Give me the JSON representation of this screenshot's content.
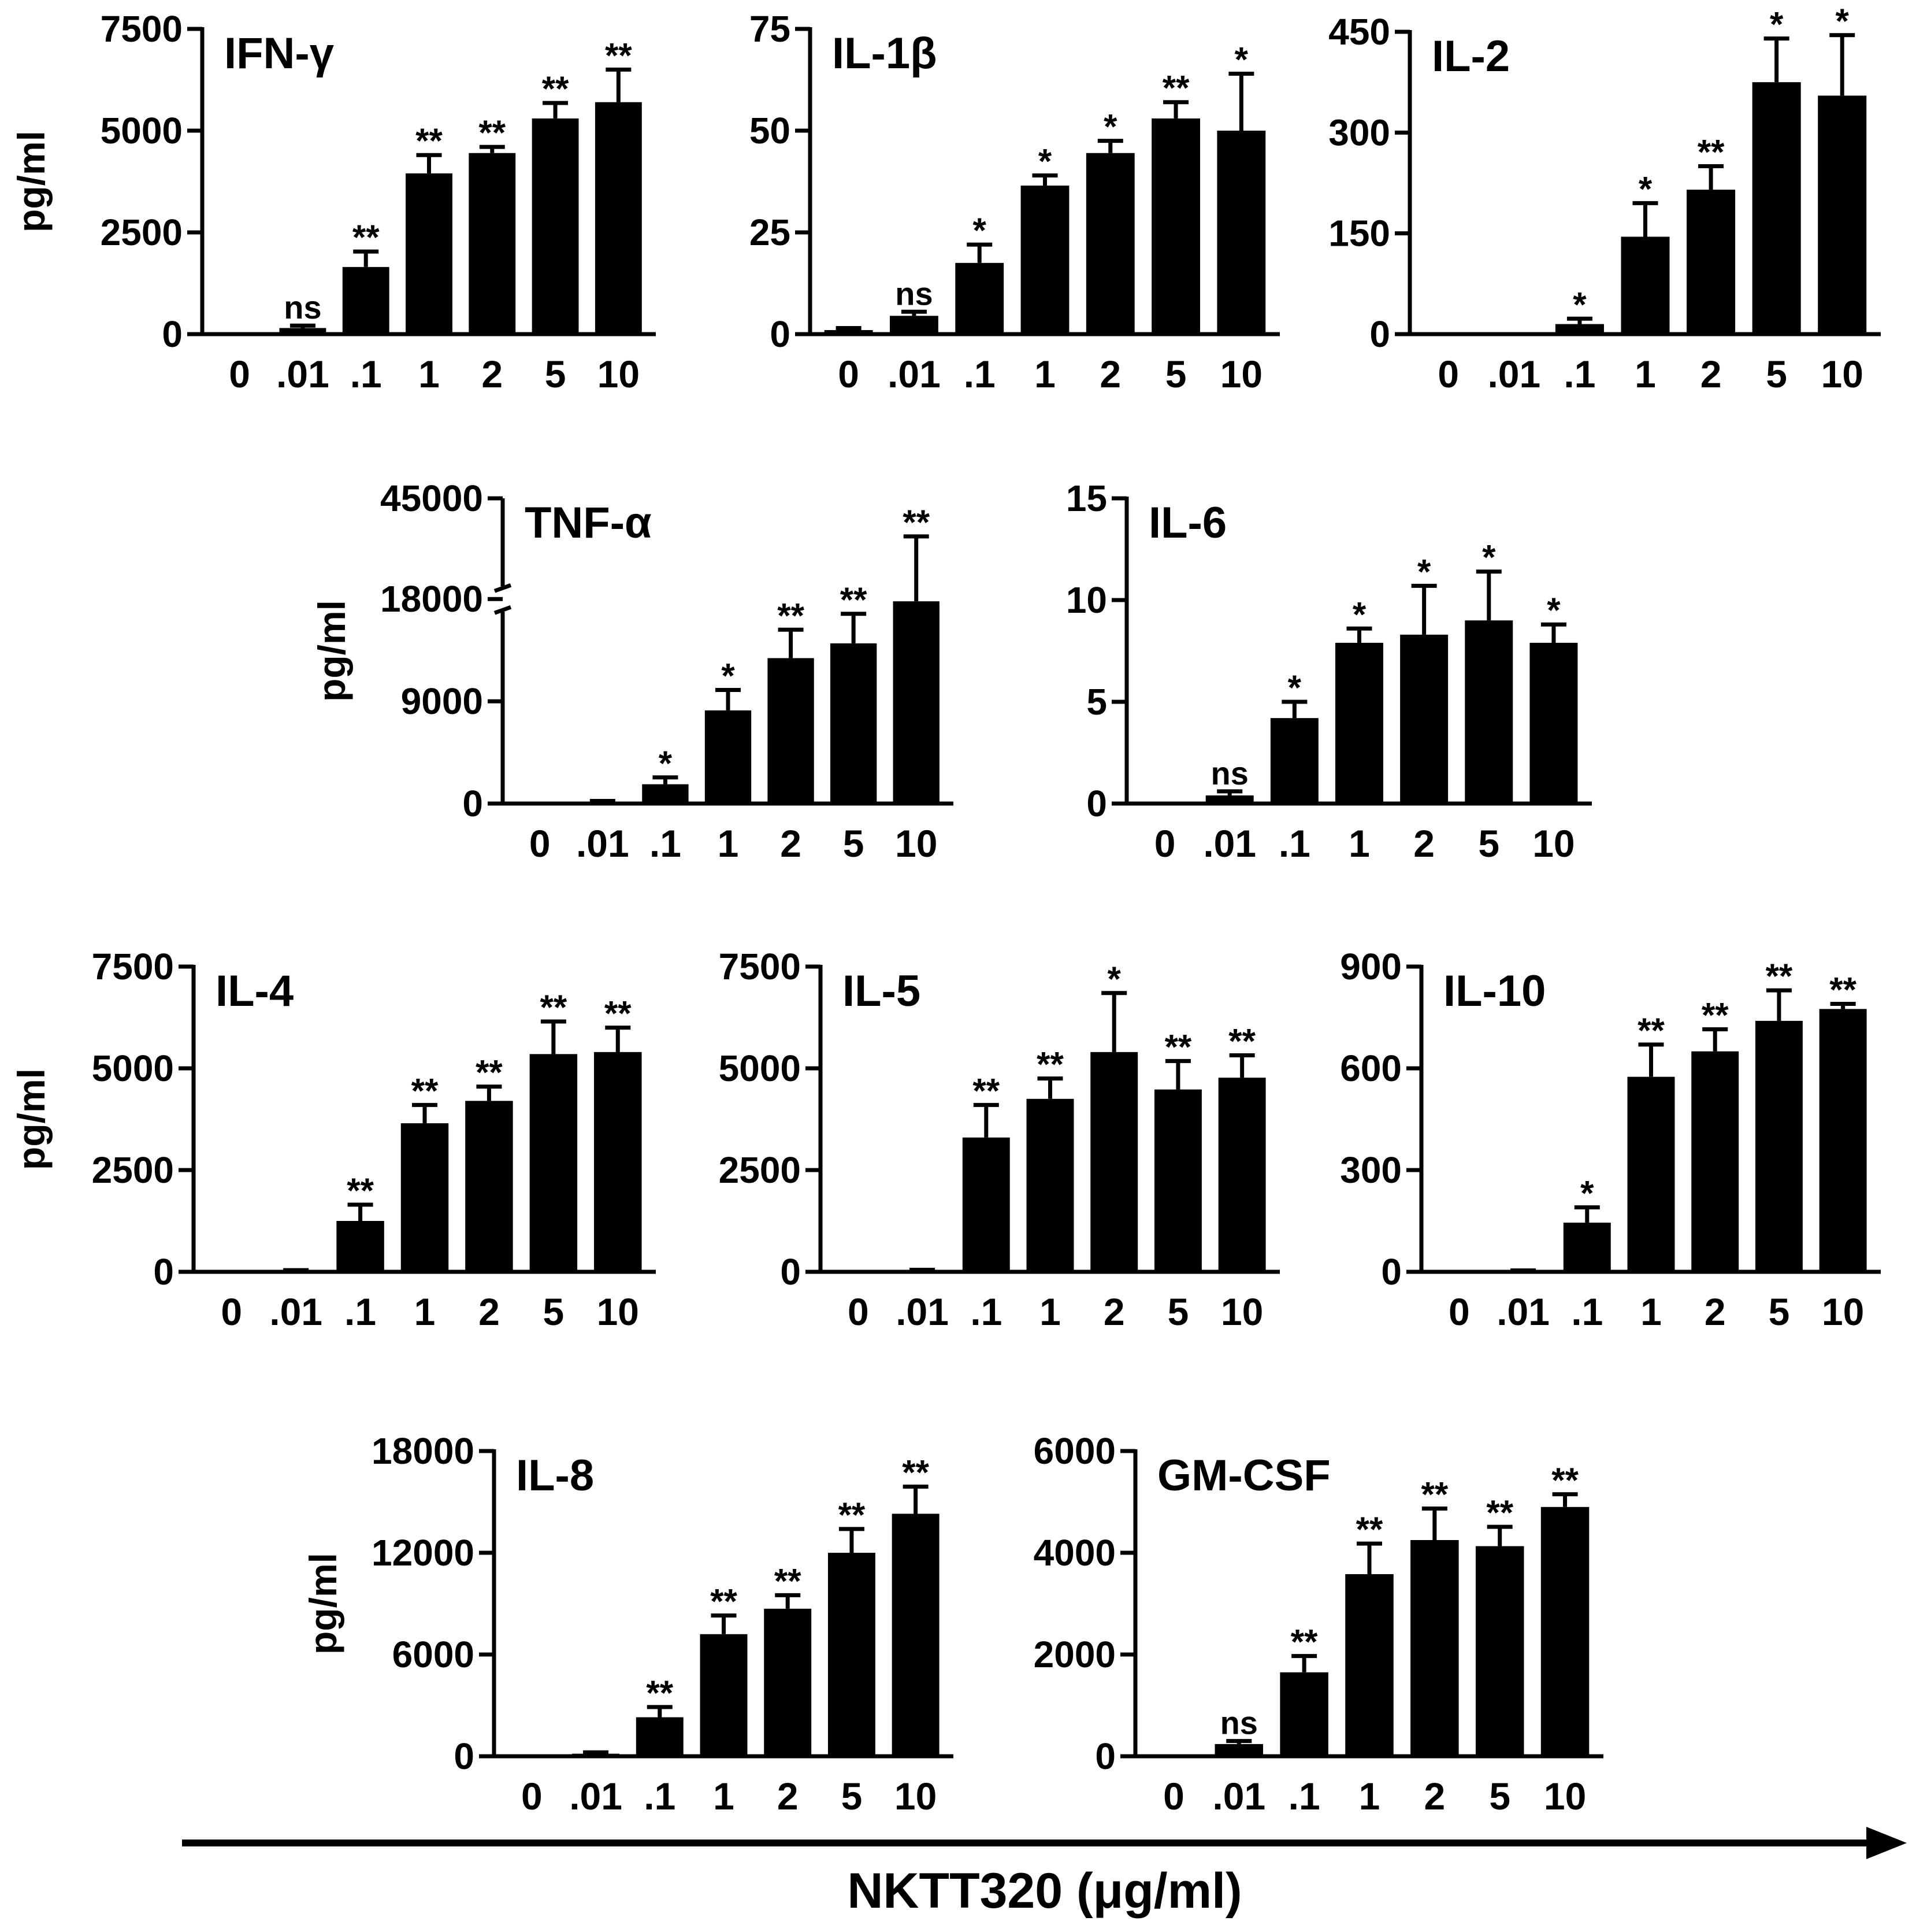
{
  "figure": {
    "x_axis_title": "NKTT320 (μg/ml)",
    "colors": {
      "bar": "#000000",
      "axis": "#000000",
      "background": "#ffffff"
    }
  },
  "chart_data": [
    {
      "type": "bar",
      "title": "IFN-γ",
      "ylabel": "pg/ml",
      "categories": [
        "0",
        ".01",
        ".1",
        "1",
        "2",
        "5",
        "10"
      ],
      "values": [
        0,
        150,
        1650,
        3950,
        4450,
        5300,
        5700
      ],
      "errors": [
        0,
        60,
        380,
        450,
        150,
        380,
        800
      ],
      "significance": [
        "",
        "ns",
        "**",
        "**",
        "**",
        "**",
        "**"
      ],
      "ylim": [
        0,
        7500
      ],
      "yticks": [
        0,
        2500,
        5000,
        7500
      ],
      "ytick_labels": [
        "0",
        "2500",
        "5000",
        "7500"
      ]
    },
    {
      "type": "bar",
      "title": "IL-1β",
      "ylabel": "",
      "categories": [
        "0",
        ".01",
        ".1",
        "1",
        "2",
        "5",
        "10"
      ],
      "values": [
        1,
        4.5,
        17.5,
        36.5,
        44.5,
        53,
        50
      ],
      "errors": [
        0.5,
        1,
        4.5,
        2.5,
        3,
        4,
        14
      ],
      "significance": [
        "",
        "ns",
        "*",
        "*",
        "*",
        "**",
        "*"
      ],
      "ylim": [
        0,
        75
      ],
      "yticks": [
        0,
        25,
        50,
        75
      ],
      "ytick_labels": [
        "0",
        "25",
        "50",
        "75"
      ]
    },
    {
      "type": "bar",
      "title": "IL-2",
      "ylabel": "",
      "categories": [
        "0",
        ".01",
        ".1",
        "1",
        "2",
        "5",
        "10"
      ],
      "values": [
        0,
        0,
        15,
        145,
        215,
        375,
        355
      ],
      "errors": [
        0,
        0,
        8,
        50,
        35,
        65,
        90
      ],
      "significance": [
        "",
        "",
        "*",
        "*",
        "**",
        "*",
        "*"
      ],
      "ylim": [
        0,
        450
      ],
      "yticks": [
        0,
        150,
        300,
        450
      ],
      "ytick_labels": [
        "0",
        "150",
        "300",
        "450"
      ]
    },
    {
      "type": "bar",
      "title": "TNF-α",
      "ylabel": "pg/ml",
      "categories": [
        "0",
        ".01",
        ".1",
        "1",
        "2",
        "5",
        "10"
      ],
      "values": [
        0,
        150,
        1700,
        8200,
        12800,
        14100,
        17800
      ],
      "errors": [
        0,
        80,
        600,
        1800,
        2500,
        2600,
        17000
      ],
      "significance": [
        "",
        "",
        "*",
        "*",
        "**",
        "**",
        "**"
      ],
      "ylim": [
        0,
        45000
      ],
      "axis_break": [
        18000,
        45000
      ],
      "yticks": [
        0,
        9000,
        18000,
        45000
      ],
      "ytick_labels": [
        "0",
        "9000",
        "18000",
        "45000"
      ]
    },
    {
      "type": "bar",
      "title": "IL-6",
      "ylabel": "",
      "categories": [
        "0",
        ".01",
        ".1",
        "1",
        "2",
        "5",
        "10"
      ],
      "values": [
        0,
        0.4,
        4.2,
        7.9,
        8.3,
        9.0,
        7.9
      ],
      "errors": [
        0,
        0.2,
        0.8,
        0.7,
        2.4,
        2.4,
        0.9
      ],
      "significance": [
        "",
        "ns",
        "*",
        "*",
        "*",
        "*",
        "*"
      ],
      "ylim": [
        0,
        15
      ],
      "yticks": [
        0,
        5,
        10,
        15
      ],
      "ytick_labels": [
        "0",
        "5",
        "10",
        "15"
      ]
    },
    {
      "type": "bar",
      "title": "IL-4",
      "ylabel": "pg/ml",
      "categories": [
        "0",
        ".01",
        ".1",
        "1",
        "2",
        "5",
        "10"
      ],
      "values": [
        0,
        20,
        1250,
        3650,
        4200,
        5350,
        5400
      ],
      "errors": [
        0,
        20,
        400,
        450,
        350,
        800,
        600
      ],
      "significance": [
        "",
        "",
        "**",
        "**",
        "**",
        "**",
        "**"
      ],
      "ylim": [
        0,
        7500
      ],
      "yticks": [
        0,
        2500,
        5000,
        7500
      ],
      "ytick_labels": [
        "0",
        "2500",
        "5000",
        "7500"
      ]
    },
    {
      "type": "bar",
      "title": "IL-5",
      "ylabel": "",
      "categories": [
        "0",
        ".01",
        ".1",
        "1",
        "2",
        "5",
        "10"
      ],
      "values": [
        0,
        30,
        3300,
        4250,
        5400,
        4480,
        4770
      ],
      "errors": [
        0,
        20,
        800,
        500,
        1450,
        700,
        550
      ],
      "significance": [
        "",
        "",
        "**",
        "**",
        "*",
        "**",
        "**"
      ],
      "ylim": [
        0,
        7500
      ],
      "yticks": [
        0,
        2500,
        5000,
        7500
      ],
      "ytick_labels": [
        "0",
        "2500",
        "5000",
        "7500"
      ]
    },
    {
      "type": "bar",
      "title": "IL-10",
      "ylabel": "",
      "categories": [
        "0",
        ".01",
        ".1",
        "1",
        "2",
        "5",
        "10"
      ],
      "values": [
        0,
        2,
        145,
        575,
        650,
        740,
        775
      ],
      "errors": [
        0,
        2,
        45,
        95,
        65,
        90,
        15
      ],
      "significance": [
        "",
        "",
        "*",
        "**",
        "**",
        "**",
        "**"
      ],
      "ylim": [
        0,
        900
      ],
      "yticks": [
        0,
        300,
        600,
        900
      ],
      "ytick_labels": [
        "0",
        "300",
        "600",
        "900"
      ]
    },
    {
      "type": "bar",
      "title": "IL-8",
      "ylabel": "pg/ml",
      "categories": [
        "0",
        ".01",
        ".1",
        "1",
        "2",
        "5",
        "10"
      ],
      "values": [
        0,
        150,
        2300,
        7200,
        8700,
        12000,
        14300
      ],
      "errors": [
        0,
        80,
        600,
        1100,
        800,
        1400,
        1600
      ],
      "significance": [
        "",
        "",
        "**",
        "**",
        "**",
        "**",
        "**"
      ],
      "ylim": [
        0,
        18000
      ],
      "yticks": [
        0,
        6000,
        12000,
        18000
      ],
      "ytick_labels": [
        "0",
        "6000",
        "12000",
        "18000"
      ]
    },
    {
      "type": "bar",
      "title": "GM-CSF",
      "ylabel": "",
      "categories": [
        "0",
        ".01",
        ".1",
        "1",
        "2",
        "5",
        "10"
      ],
      "values": [
        0,
        240,
        1650,
        3580,
        4250,
        4130,
        4900
      ],
      "errors": [
        0,
        60,
        320,
        600,
        620,
        380,
        250
      ],
      "significance": [
        "",
        "ns",
        "**",
        "**",
        "**",
        "**",
        "**"
      ],
      "ylim": [
        0,
        6000
      ],
      "yticks": [
        0,
        2000,
        4000,
        6000
      ],
      "ytick_labels": [
        "0",
        "2000",
        "4000",
        "6000"
      ]
    }
  ]
}
